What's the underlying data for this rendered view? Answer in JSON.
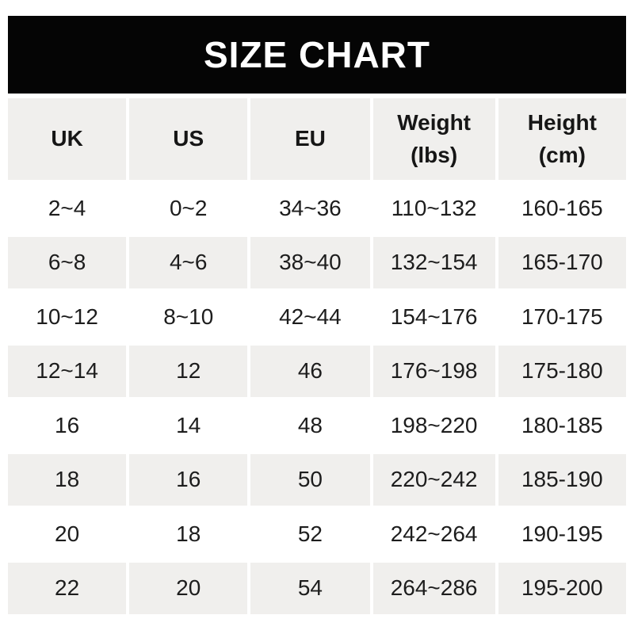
{
  "title_bar": {
    "title": "SIZE CHART"
  },
  "chart_data": {
    "type": "table",
    "title": "SIZE CHART",
    "columns": [
      {
        "label": "UK",
        "sub": ""
      },
      {
        "label": "US",
        "sub": ""
      },
      {
        "label": "EU",
        "sub": ""
      },
      {
        "label": "Weight",
        "sub": "(lbs)"
      },
      {
        "label": "Height",
        "sub": "(cm)"
      }
    ],
    "rows": [
      [
        "2~4",
        "0~2",
        "34~36",
        "110~132",
        "160-165"
      ],
      [
        "6~8",
        "4~6",
        "38~40",
        "132~154",
        "165-170"
      ],
      [
        "10~12",
        "8~10",
        "42~44",
        "154~176",
        "170-175"
      ],
      [
        "12~14",
        "12",
        "46",
        "176~198",
        "175-180"
      ],
      [
        "16",
        "14",
        "48",
        "198~220",
        "180-185"
      ],
      [
        "18",
        "16",
        "50",
        "220~242",
        "185-190"
      ],
      [
        "20",
        "18",
        "52",
        "242~264",
        "190-195"
      ],
      [
        "22",
        "20",
        "54",
        "264~286",
        "195-200"
      ]
    ],
    "layout": {
      "alternating_rows": true,
      "header_background": "gray",
      "first_data_row_background": "white"
    }
  },
  "colors": {
    "title_bar_bg": "#050505",
    "title_text": "#ffffff",
    "alt_row_bg": "#f0efed",
    "body_text": "#1d1d1d",
    "page_bg": "#ffffff"
  }
}
